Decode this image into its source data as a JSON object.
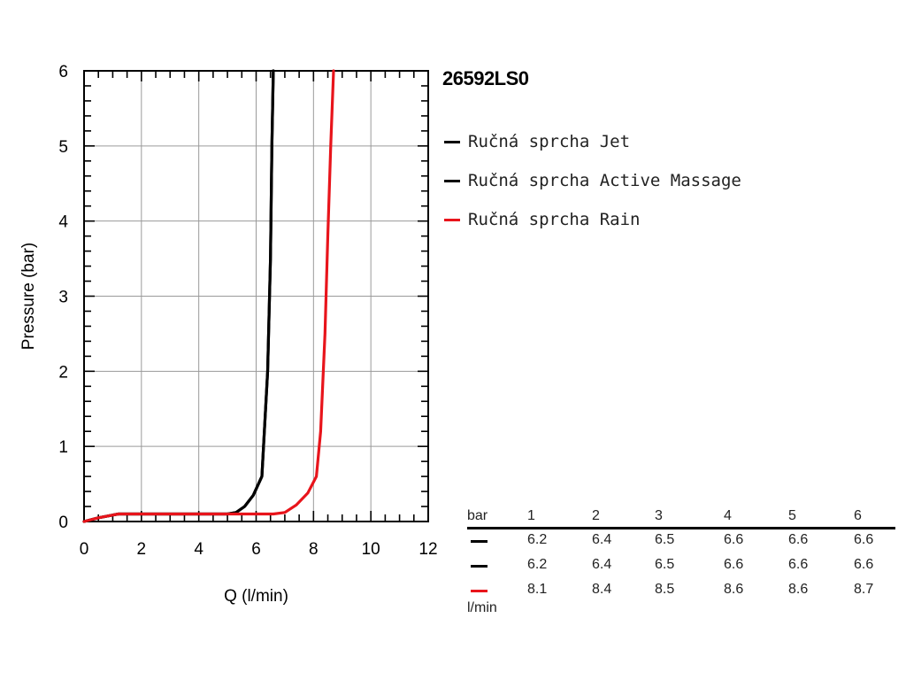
{
  "chart_data": {
    "type": "line",
    "title": "26592LS0",
    "xlabel": "Q (l/min)",
    "ylabel": "Pressure (bar)",
    "xlim": [
      0,
      12
    ],
    "ylim": [
      0,
      6
    ],
    "x_ticks": [
      "0",
      "2",
      "4",
      "6",
      "8",
      "10",
      "12"
    ],
    "y_ticks": [
      "0",
      "1",
      "2",
      "3",
      "4",
      "5",
      "6"
    ],
    "grid": true,
    "legend_position": "right",
    "series": [
      {
        "name": "Ručná sprcha Jet",
        "color": "#000000",
        "points": [
          [
            0,
            0
          ],
          [
            0.5,
            0.05
          ],
          [
            1.2,
            0.1
          ],
          [
            5.0,
            0.1
          ],
          [
            5.3,
            0.12
          ],
          [
            5.6,
            0.2
          ],
          [
            5.9,
            0.35
          ],
          [
            6.2,
            0.6
          ],
          [
            6.4,
            2.0
          ],
          [
            6.5,
            3.5
          ],
          [
            6.55,
            5.0
          ],
          [
            6.6,
            6.0
          ]
        ]
      },
      {
        "name": "Ručná sprcha Active Massage",
        "color": "#000000",
        "points": [
          [
            0,
            0
          ],
          [
            0.5,
            0.05
          ],
          [
            1.2,
            0.1
          ],
          [
            5.0,
            0.1
          ],
          [
            5.3,
            0.12
          ],
          [
            5.6,
            0.2
          ],
          [
            5.9,
            0.35
          ],
          [
            6.2,
            0.6
          ],
          [
            6.4,
            2.0
          ],
          [
            6.5,
            3.5
          ],
          [
            6.55,
            5.0
          ],
          [
            6.6,
            6.0
          ]
        ]
      },
      {
        "name": "Ručná sprcha Rain",
        "color": "#e8141b",
        "points": [
          [
            0,
            0
          ],
          [
            0.5,
            0.05
          ],
          [
            1.2,
            0.1
          ],
          [
            6.6,
            0.1
          ],
          [
            7.0,
            0.12
          ],
          [
            7.4,
            0.22
          ],
          [
            7.8,
            0.38
          ],
          [
            8.1,
            0.6
          ],
          [
            8.25,
            1.2
          ],
          [
            8.4,
            2.5
          ],
          [
            8.5,
            3.8
          ],
          [
            8.6,
            5.0
          ],
          [
            8.7,
            6.0
          ]
        ]
      }
    ]
  },
  "table": {
    "header_label": "bar",
    "unit_label": "l/min",
    "columns": [
      "1",
      "2",
      "3",
      "4",
      "5",
      "6"
    ],
    "rows": [
      {
        "color": "#000000",
        "values": [
          "6.2",
          "6.4",
          "6.5",
          "6.6",
          "6.6",
          "6.6"
        ]
      },
      {
        "color": "#000000",
        "values": [
          "6.2",
          "6.4",
          "6.5",
          "6.6",
          "6.6",
          "6.6"
        ]
      },
      {
        "color": "#e8141b",
        "values": [
          "8.1",
          "8.4",
          "8.5",
          "8.6",
          "8.6",
          "8.7"
        ]
      }
    ]
  }
}
